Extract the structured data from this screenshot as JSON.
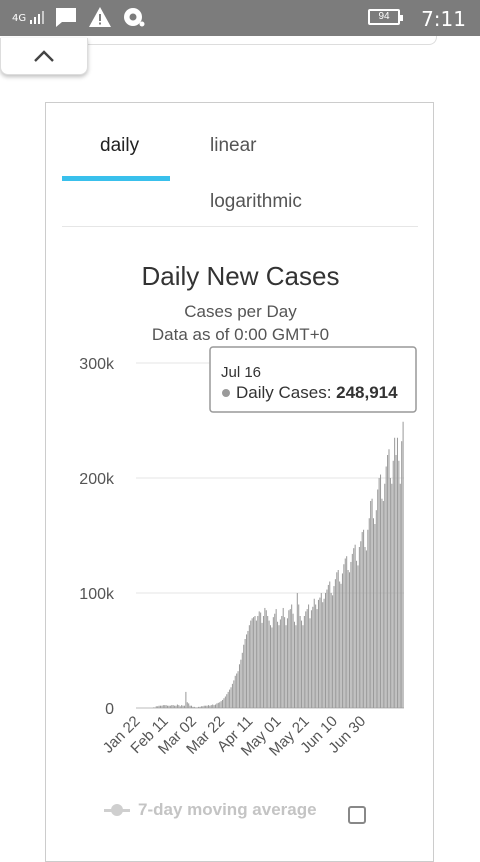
{
  "status_bar": {
    "network": "4G",
    "battery": "94",
    "time": "7:11",
    "icons": [
      "signal-icon",
      "message-icon",
      "warning-icon",
      "sync-icon"
    ]
  },
  "header": {
    "collapse_icon": "chevron-up-icon"
  },
  "tabs": [
    {
      "label": "daily",
      "active": true
    },
    {
      "label": "linear",
      "active": false
    },
    {
      "label": "logarithmic",
      "active": false
    }
  ],
  "colors": {
    "tab_indicator": "#39c0ec",
    "bars": "#9a9a9a",
    "grid": "#e6e6e6"
  },
  "chart_data": {
    "type": "bar",
    "title": "Daily New Cases",
    "subtitle": "Cases per Day",
    "caption": "Data as of 0:00 GMT+0",
    "x_tick_labels": [
      "Jan 22",
      "Feb 11",
      "Mar 02",
      "Mar 22",
      "Apr 11",
      "May 01",
      "May 21",
      "Jun 10",
      "Jun 30"
    ],
    "y_tick_labels": [
      "0",
      "100k",
      "200k",
      "300k"
    ],
    "ylim": [
      0,
      300000
    ],
    "grid": true,
    "series": [
      {
        "name": "Daily Cases",
        "values": [
          0,
          0,
          0,
          0,
          0,
          0,
          0,
          0,
          0,
          0,
          0,
          0,
          500,
          500,
          1500,
          1500,
          2000,
          2000,
          2000,
          2500,
          2500,
          2500,
          2000,
          2000,
          2000,
          2500,
          2500,
          2000,
          2000,
          3000,
          2500,
          1500,
          2500,
          2000,
          2000,
          14000,
          5000,
          4000,
          2000,
          2000,
          1000,
          1000,
          500,
          500,
          1000,
          1000,
          1500,
          1500,
          2000,
          2000,
          2000,
          2500,
          2000,
          2500,
          3000,
          2500,
          3000,
          4000,
          4500,
          5000,
          6000,
          7000,
          8500,
          10000,
          12000,
          14000,
          16000,
          18000,
          21000,
          24000,
          28000,
          30000,
          32000,
          38000,
          42000,
          48000,
          55000,
          60000,
          64000,
          67000,
          72000,
          76000,
          78000,
          79000,
          80000,
          76000,
          80000,
          84000,
          83000,
          74000,
          80000,
          87000,
          85000,
          80000,
          76000,
          72000,
          70000,
          79000,
          82000,
          86000,
          75000,
          72000,
          77000,
          80000,
          87000,
          79000,
          72000,
          78000,
          85000,
          86000,
          90000,
          82000,
          75000,
          72000,
          100000,
          90000,
          80000,
          76000,
          72000,
          80000,
          84000,
          86000,
          90000,
          78000,
          85000,
          88000,
          95000,
          90000,
          86000,
          94000,
          96000,
          100000,
          92000,
          95000,
          100000,
          103000,
          107000,
          110000,
          100000,
          98000,
          106000,
          112000,
          118000,
          120000,
          110000,
          108000,
          117000,
          125000,
          130000,
          132000,
          120000,
          118000,
          127000,
          134000,
          139000,
          142000,
          128000,
          124000,
          140000,
          145000,
          153000,
          155000,
          140000,
          137000,
          155000,
          165000,
          180000,
          182000,
          165000,
          160000,
          172000,
          190000,
          200000,
          203000,
          182000,
          180000,
          195000,
          210000,
          220000,
          225000,
          200000,
          195000,
          215000,
          235000,
          220000,
          235000,
          215000,
          195000,
          232000,
          248914
        ]
      }
    ],
    "tooltip": {
      "date": "Jul 16",
      "label": "Daily Cases:",
      "value": "248,914"
    },
    "legend": {
      "label": "7-day moving average",
      "checked": false
    }
  }
}
